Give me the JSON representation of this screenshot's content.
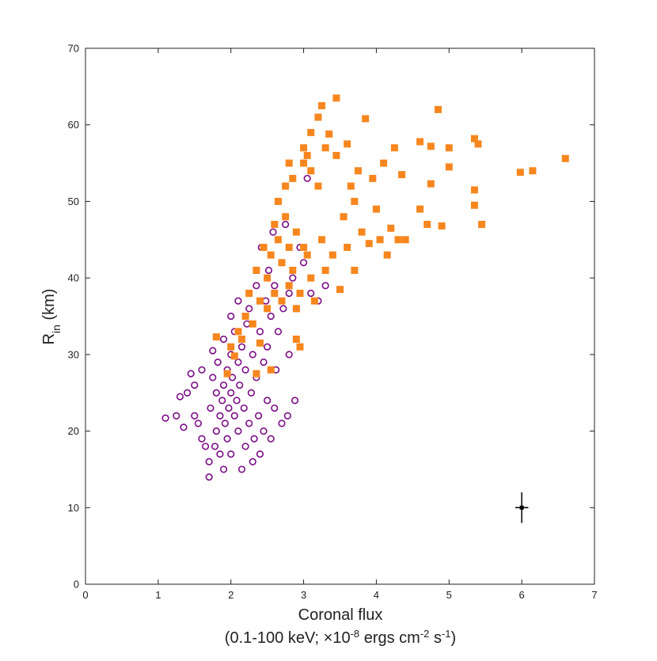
{
  "chart_data": {
    "type": "scatter",
    "xlabel": "Coronal flux",
    "xlabel2": [
      "(0.1-100 keV; ×10",
      "-8",
      " ergs cm",
      "-2",
      " s",
      "-1",
      ")"
    ],
    "ylabel": [
      "R",
      "in",
      " (km)"
    ],
    "xlim": [
      0,
      7
    ],
    "xticks": [
      0,
      1,
      2,
      3,
      4,
      5,
      6,
      7
    ],
    "ylim": [
      0,
      70
    ],
    "yticks": [
      0,
      10,
      20,
      30,
      40,
      50,
      60,
      70
    ],
    "series": [
      {
        "color": "#7b0d86",
        "marker": "circle",
        "x": [
          1.1,
          1.25,
          1.3,
          1.35,
          1.4,
          1.45,
          1.5,
          1.5,
          1.55,
          1.6,
          1.6,
          1.65,
          1.7,
          1.7,
          1.72,
          1.75,
          1.75,
          1.78,
          1.8,
          1.8,
          1.82,
          1.85,
          1.85,
          1.88,
          1.9,
          1.9,
          1.9,
          1.92,
          1.95,
          1.95,
          1.97,
          2.0,
          2.0,
          2.0,
          2.0,
          2.02,
          2.05,
          2.05,
          2.08,
          2.1,
          2.1,
          2.1,
          2.12,
          2.15,
          2.15,
          2.18,
          2.2,
          2.2,
          2.22,
          2.25,
          2.25,
          2.28,
          2.3,
          2.3,
          2.32,
          2.35,
          2.35,
          2.38,
          2.4,
          2.4,
          2.42,
          2.45,
          2.45,
          2.48,
          2.5,
          2.5,
          2.52,
          2.55,
          2.55,
          2.58,
          2.6,
          2.6,
          2.62,
          2.65,
          2.65,
          2.7,
          2.7,
          2.72,
          2.75,
          2.78,
          2.8,
          2.8,
          2.85,
          2.88,
          2.9,
          2.95,
          3.0,
          3.05,
          3.1,
          3.2,
          3.3
        ],
        "y": [
          21.7,
          22,
          24.5,
          20.5,
          25,
          27.5,
          26,
          22,
          21,
          28,
          19,
          18,
          14,
          16,
          23,
          27,
          30.5,
          18,
          25,
          20,
          29,
          22,
          17,
          24,
          15,
          26,
          32,
          21,
          28,
          19,
          23,
          25,
          30,
          35,
          17,
          27,
          22,
          33,
          24,
          29,
          20,
          37,
          26,
          31,
          15,
          23,
          28,
          18,
          34,
          21,
          36,
          25,
          30,
          16,
          19,
          39,
          27,
          22,
          33,
          17,
          44,
          29,
          20,
          37,
          31,
          24,
          41,
          35,
          19,
          46,
          39,
          23,
          28,
          50,
          33,
          21,
          42,
          36,
          47,
          22,
          38,
          30,
          40,
          24,
          36,
          44,
          42,
          53,
          38,
          37,
          39
        ]
      },
      {
        "color": "#f7861e",
        "marker": "square",
        "x": [
          1.8,
          1.95,
          2.0,
          2.05,
          2.1,
          2.15,
          2.2,
          2.25,
          2.3,
          2.35,
          2.35,
          2.4,
          2.4,
          2.45,
          2.5,
          2.5,
          2.55,
          2.55,
          2.6,
          2.6,
          2.65,
          2.65,
          2.7,
          2.7,
          2.75,
          2.75,
          2.8,
          2.8,
          2.8,
          2.85,
          2.85,
          2.9,
          2.9,
          2.9,
          2.95,
          2.95,
          3.0,
          3.0,
          3.0,
          3.05,
          3.05,
          3.1,
          3.1,
          3.1,
          3.15,
          3.2,
          3.2,
          3.25,
          3.25,
          3.3,
          3.3,
          3.35,
          3.4,
          3.45,
          3.45,
          3.5,
          3.55,
          3.6,
          3.6,
          3.65,
          3.7,
          3.7,
          3.75,
          3.8,
          3.85,
          3.9,
          3.95,
          4.0,
          4.05,
          4.1,
          4.15,
          4.2,
          4.25,
          4.3,
          4.35,
          4.4,
          4.6,
          4.6,
          4.7,
          4.75,
          4.75,
          4.85,
          4.9,
          5.0,
          5.0,
          5.35,
          5.35,
          5.35,
          5.4,
          5.45,
          5.98,
          6.15,
          6.6
        ],
        "y": [
          32.3,
          27.5,
          31,
          29.8,
          33,
          32,
          35,
          38,
          34,
          27.5,
          41,
          31.5,
          37,
          44,
          36,
          40,
          43,
          28,
          47,
          38,
          45,
          50,
          42,
          37,
          48,
          52,
          55,
          44,
          39,
          41,
          53,
          46,
          36,
          32,
          38,
          31,
          55,
          57,
          44,
          43,
          56,
          54,
          40,
          59,
          37,
          52,
          61,
          62.5,
          45,
          57,
          41,
          58.8,
          43,
          63.5,
          56,
          38.5,
          48,
          57.5,
          44,
          52,
          50,
          41,
          54,
          46,
          60.8,
          44.5,
          53,
          49,
          45,
          55,
          43,
          46.5,
          57,
          45,
          53.5,
          45,
          57.8,
          49,
          47,
          57.2,
          52.3,
          62,
          46.8,
          54.5,
          57,
          58.2,
          51.5,
          49.5,
          57.5,
          47,
          53.8,
          54,
          55.6
        ]
      }
    ],
    "error_point": {
      "x": 6,
      "y": 10,
      "xerr": 0.09,
      "yerr": 2
    }
  }
}
